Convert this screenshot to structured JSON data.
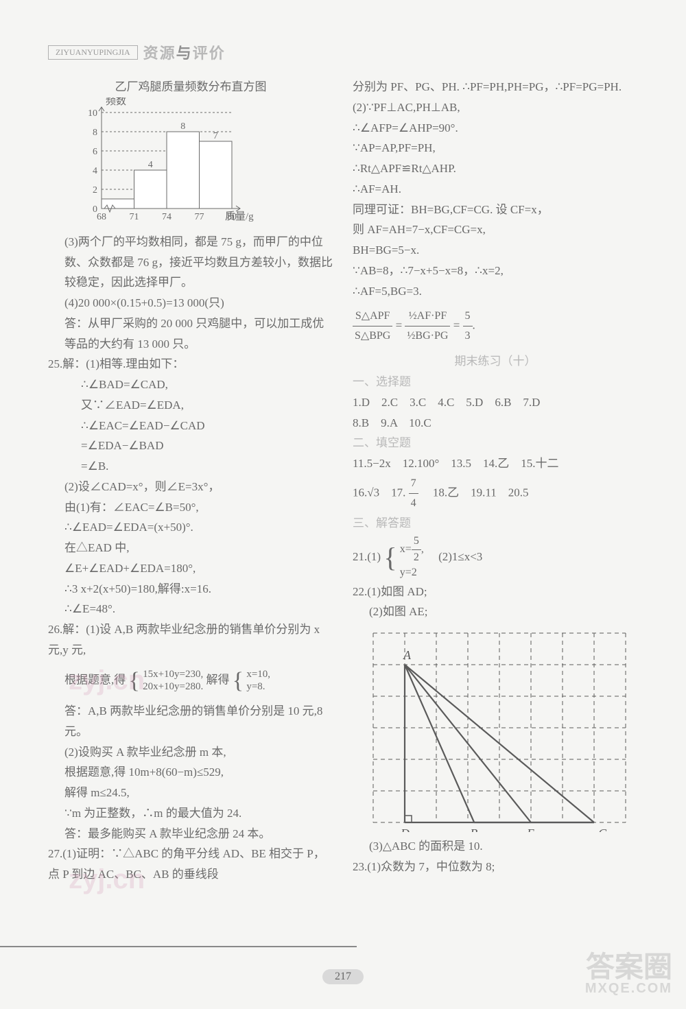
{
  "header": {
    "box_text": "ZIYUANYUPINGJIA",
    "title_pre": "资源",
    "title_em": "与",
    "title_post": "评价"
  },
  "page_number": "217",
  "watermarks": {
    "w1": "zyj.cn",
    "w2": "zyj.cn",
    "w3_top": "答案圈",
    "w3_bottom": "MXQE.COM"
  },
  "chart": {
    "title": "乙厂鸡腿质量频数分布直方图",
    "y_label": "频数",
    "x_label": "质量/g",
    "y_ticks": [
      0,
      2,
      4,
      6,
      8,
      10
    ],
    "x_ticks": [
      68,
      71,
      74,
      77,
      80
    ],
    "bars": [
      {
        "x": 68,
        "h": 1,
        "label": ""
      },
      {
        "x": 71,
        "h": 4,
        "label": "4"
      },
      {
        "x": 74,
        "h": 8,
        "label": "8"
      },
      {
        "x": 77,
        "h": 7,
        "label": "7"
      }
    ],
    "bar_color": "#ffffff",
    "border_color": "#6a6a6a",
    "grid_dash": "3,3"
  },
  "left": {
    "p1": "(3)两个厂的平均数相同，都是 75 g，而甲厂的中位数、众数都是 76 g，接近平均数且方差较小，数据比较稳定，因此选择甲厂。",
    "p2": "(4)20 000×(0.15+0.5)=13 000(只)",
    "p3": "答：从甲厂采购的 20 000 只鸡腿中，可以加工成优等品的大约有 13 000 只。",
    "q25_head": "25.解：(1)相等.理由如下：",
    "q25_1": "∴∠BAD=∠CAD,",
    "q25_2": "又∵∠EAD=∠EDA,",
    "q25_3": "∴∠EAC=∠EAD−∠CAD",
    "q25_4": "=∠EDA−∠BAD",
    "q25_5": "=∠B.",
    "q25_6": "(2)设∠CAD=x°，则∠E=3x°，",
    "q25_7": "由(1)有：∠EAC=∠B=50°,",
    "q25_8": "∴∠EAD=∠EDA=(x+50)°.",
    "q25_9": "在△EAD 中,",
    "q25_10": "∠E+∠EAD+∠EDA=180°,",
    "q25_11": "∴3 x+2(x+50)=180,解得:x=16.",
    "q25_12": "∴∠E=48°.",
    "q26_head": "26.解：(1)设 A,B 两款毕业纪念册的销售单价分别为 x 元,y 元,",
    "q26_sys_l1": "15x+10y=230,",
    "q26_sys_l2": "20x+10y=280.",
    "q26_sys_r1": "x=10,",
    "q26_sys_r2": "y=8.",
    "q26_eq_pre": "根据题意,得",
    "q26_eq_mid": "解得",
    "q26_2": "答：A,B 两款毕业纪念册的销售单价分别是 10 元,8 元。",
    "q26_3": "(2)设购买 A 款毕业纪念册 m 本,",
    "q26_4": "根据题意,得 10m+8(60−m)≤529,",
    "q26_5": "解得 m≤24.5,",
    "q26_6": "∵m 为正整数，∴m 的最大值为 24.",
    "q26_7": "答：最多能购买 A 款毕业纪念册 24 本。",
    "q27_head": "27.(1)证明：∵△ABC 的角平分线 AD、BE 相交于 P，点 P 到边 AC、BC、AB 的垂线段"
  },
  "right": {
    "r1": "分别为 PF、PG、PH. ∴PF=PH,PH=PG，∴PF=PG=PH.",
    "r2": "(2)∵PF⊥AC,PH⊥AB,",
    "r3": "∴∠AFP=∠AHP=90°.",
    "r4": "∵AP=AP,PF=PH,",
    "r5": "∴Rt△APF≌Rt△AHP.",
    "r6": "∴AF=AH.",
    "r7": "同理可证：BH=BG,CF=CG. 设 CF=x，",
    "r8": "则 AF=AH=7−x,CF=CG=x,",
    "r9": "BH=BG=5−x.",
    "r10": "∵AB=8，∴7−x+5−x=8，∴x=2,",
    "r11": "∴AF=5,BG=3.",
    "ratio_eq": "=",
    "ratio_lhs_num": "S△APF",
    "ratio_lhs_den": "S△BPG",
    "ratio_rhs1_num": "½AF·PF",
    "ratio_rhs1_den": "½BG·PG",
    "ratio_rhs2_num": "5",
    "ratio_rhs2_den": "3",
    "section": "期末练习（十）",
    "sec1": "一、选择题",
    "ans1": "1.D　2.C　3.C　4.C　5.D　6.B　7.D",
    "ans1b": "8.B　9.A　10.C",
    "sec2": "二、填空题",
    "ans2": "11.5−2x　12.100°　13.5　14.乙　15.十二",
    "ans2b_pre": "16.√3　17.",
    "ans2b_frac_n": "7",
    "ans2b_frac_d": "4",
    "ans2b_post": "　18.乙　19.11　20.5",
    "sec3": "三、解答题",
    "q21_pre": "21.(1)",
    "q21_l1_pre": "x=",
    "q21_l1_n": "5",
    "q21_l1_d": "2",
    "q21_l1_post": ",",
    "q21_l2": "y=2",
    "q21_2": "(2)1≤x<3",
    "q22_1": "22.(1)如图 AD;",
    "q22_2": "(2)如图 AE;",
    "q22_3": "(3)△ABC 的面积是 10.",
    "q23": "23.(1)众数为 7，中位数为 8;"
  },
  "geom": {
    "grid_cols": 8,
    "grid_rows": 7,
    "A": [
      1,
      1
    ],
    "D": [
      1,
      6
    ],
    "B": [
      3.2,
      6
    ],
    "E": [
      5,
      6
    ],
    "C": [
      7,
      6
    ],
    "labels": {
      "A": "A",
      "B": "B",
      "C": "C",
      "D": "D",
      "E": "E"
    },
    "line_color": "#5a5a5a",
    "dash": "6,5"
  }
}
